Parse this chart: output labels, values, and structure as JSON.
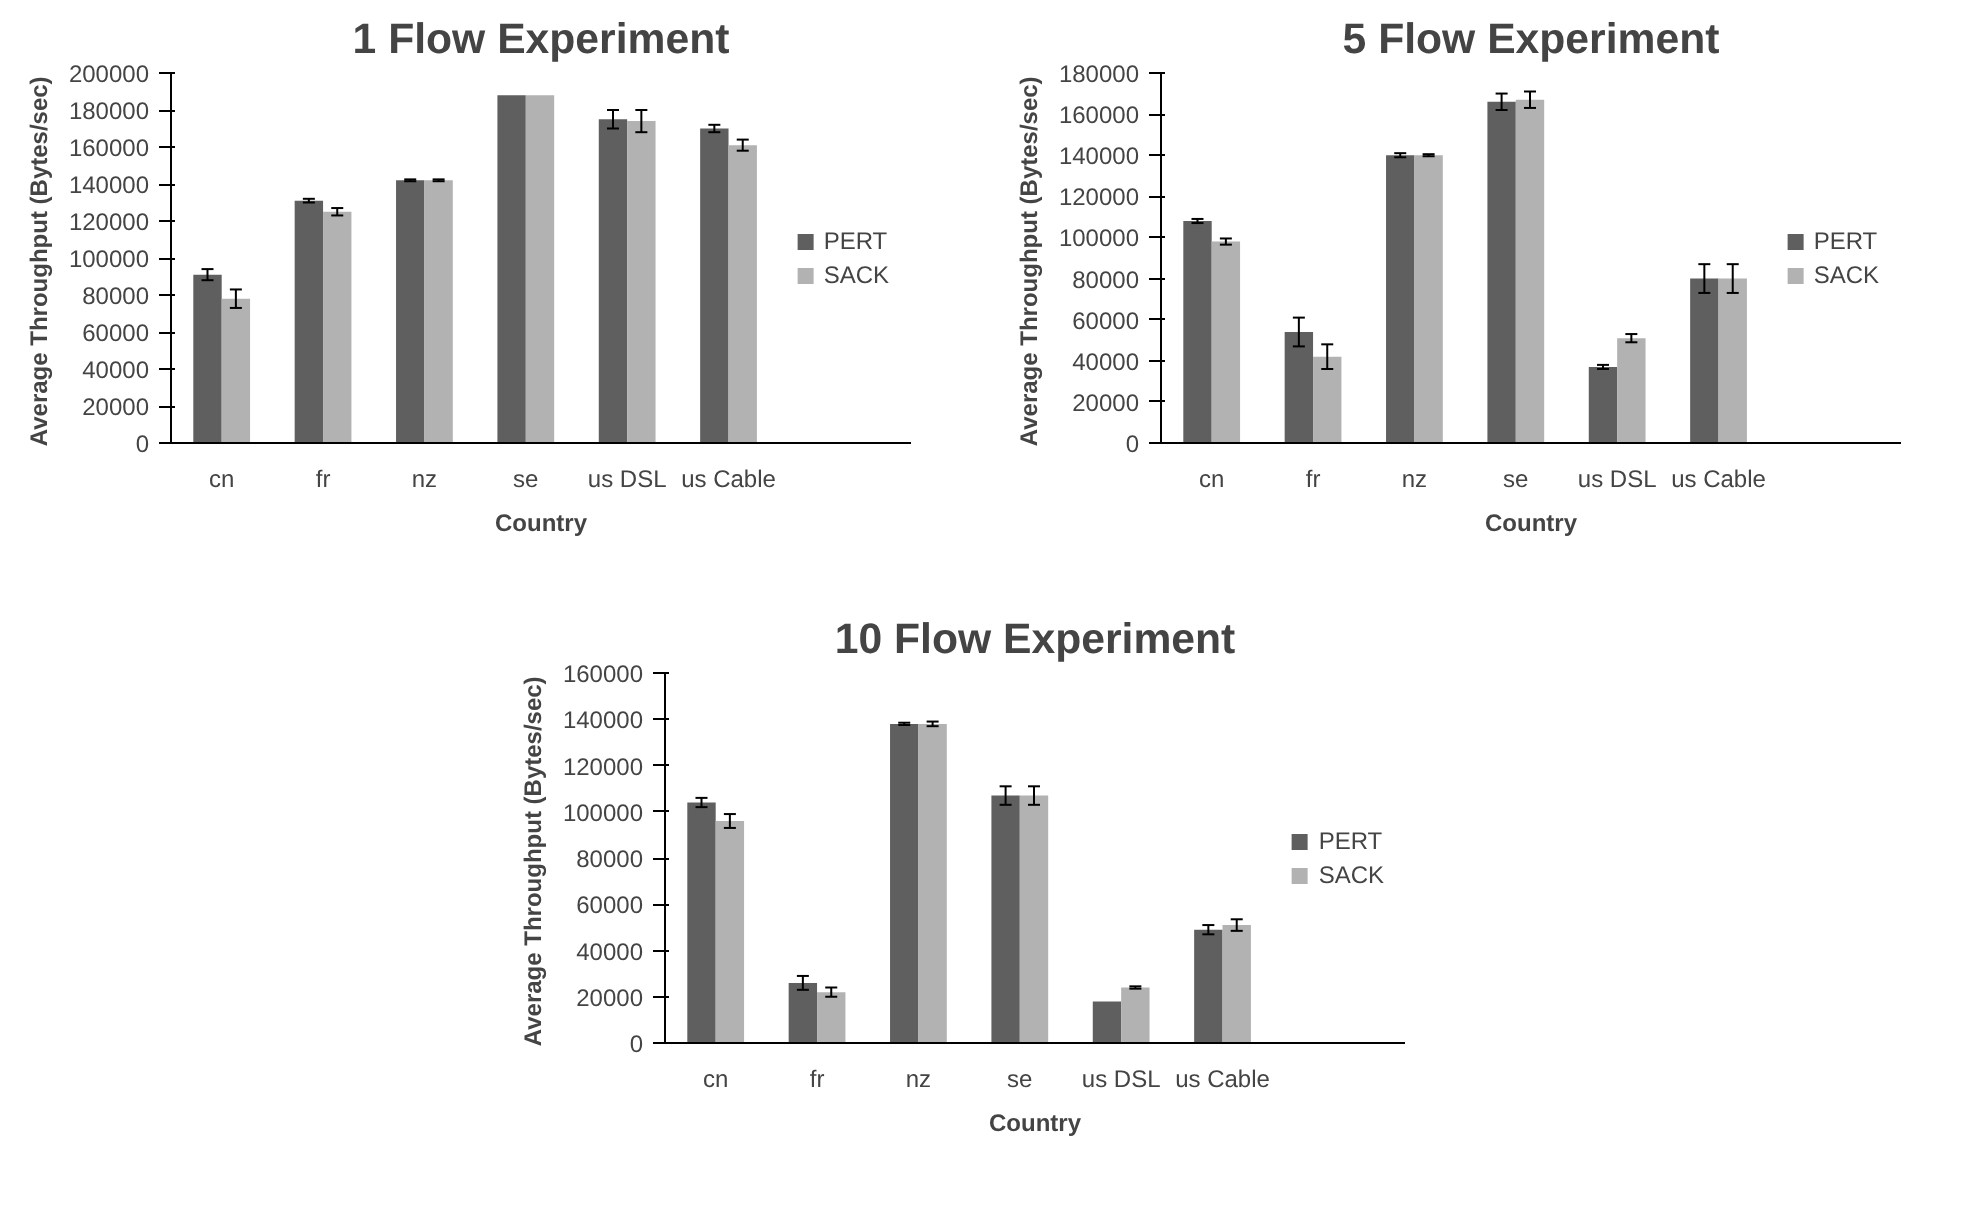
{
  "chart_data": [
    {
      "type": "bar",
      "title": "1 Flow Experiment",
      "xlabel": "Country",
      "ylabel": "Average Throughput  (Bytes/sec)",
      "categories": [
        "cn",
        "fr",
        "nz",
        "se",
        "us DSL",
        "us Cable"
      ],
      "ylim": [
        0,
        200000
      ],
      "yticks": [
        0,
        20000,
        40000,
        60000,
        80000,
        100000,
        120000,
        140000,
        160000,
        180000,
        200000
      ],
      "legend": "right",
      "series": [
        {
          "name": "PERT",
          "color": "#5f5f5f",
          "values": [
            91000,
            131000,
            142000,
            188000,
            175000,
            170000
          ],
          "errors": [
            3000,
            1000,
            500,
            null,
            5000,
            2000
          ]
        },
        {
          "name": "SACK",
          "color": "#b2b2b2",
          "values": [
            78000,
            125000,
            142000,
            188000,
            174000,
            161000
          ],
          "errors": [
            5000,
            2000,
            500,
            null,
            6000,
            3000
          ]
        }
      ]
    },
    {
      "type": "bar",
      "title": "5 Flow Experiment",
      "xlabel": "Country",
      "ylabel": "Average Throughput  (Bytes/sec)",
      "categories": [
        "cn",
        "fr",
        "nz",
        "se",
        "us DSL",
        "us Cable"
      ],
      "ylim": [
        0,
        180000
      ],
      "yticks": [
        0,
        20000,
        40000,
        60000,
        80000,
        100000,
        120000,
        140000,
        160000,
        180000
      ],
      "legend": "right",
      "series": [
        {
          "name": "PERT",
          "color": "#5f5f5f",
          "values": [
            108000,
            54000,
            140000,
            166000,
            37000,
            80000
          ],
          "errors": [
            1000,
            7000,
            1000,
            4000,
            1000,
            7000
          ]
        },
        {
          "name": "SACK",
          "color": "#b2b2b2",
          "values": [
            98000,
            42000,
            140000,
            167000,
            51000,
            80000
          ],
          "errors": [
            1500,
            6000,
            500,
            4000,
            2000,
            7000
          ]
        }
      ]
    },
    {
      "type": "bar",
      "title": "10 Flow Experiment",
      "xlabel": "Country",
      "ylabel": "Average Throughput  (Bytes/sec)",
      "categories": [
        "cn",
        "fr",
        "nz",
        "se",
        "us DSL",
        "us Cable"
      ],
      "ylim": [
        0,
        160000
      ],
      "yticks": [
        0,
        20000,
        40000,
        60000,
        80000,
        100000,
        120000,
        140000,
        160000
      ],
      "legend": "right",
      "series": [
        {
          "name": "PERT",
          "color": "#5f5f5f",
          "values": [
            104000,
            26000,
            138000,
            107000,
            18000,
            49000
          ],
          "errors": [
            2000,
            3000,
            500,
            4000,
            null,
            2000
          ]
        },
        {
          "name": "SACK",
          "color": "#b2b2b2",
          "values": [
            96000,
            22000,
            138000,
            107000,
            24000,
            51000
          ],
          "errors": [
            3000,
            2000,
            1000,
            4000,
            500,
            2500
          ]
        }
      ]
    }
  ]
}
